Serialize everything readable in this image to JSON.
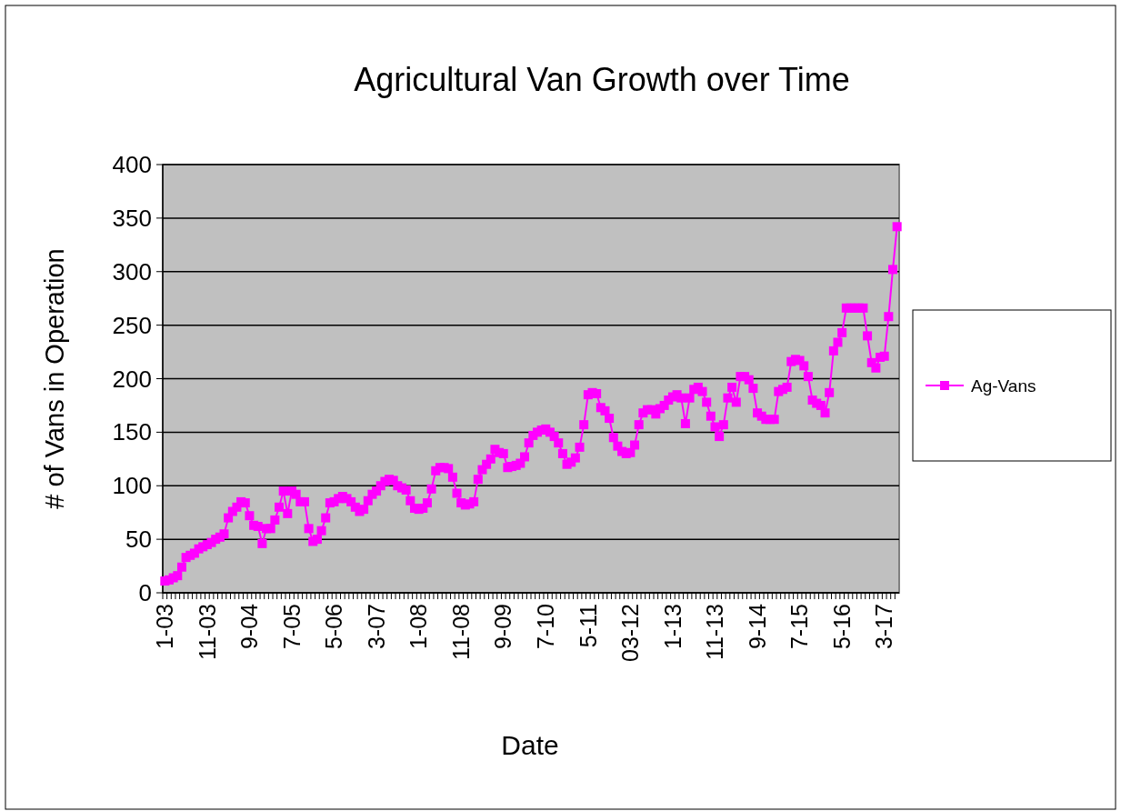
{
  "chart_data": {
    "type": "line",
    "title": "Agricultural Van Growth over Time",
    "xlabel": "Date",
    "ylabel": "# of Vans in Operation",
    "categories": [
      "1-03",
      null,
      null,
      null,
      null,
      null,
      null,
      null,
      null,
      null,
      "11-03",
      null,
      null,
      null,
      null,
      null,
      null,
      null,
      null,
      null,
      "9-04",
      null,
      null,
      null,
      null,
      null,
      null,
      null,
      null,
      null,
      "7-05",
      null,
      null,
      null,
      null,
      null,
      null,
      null,
      null,
      null,
      "5-06",
      null,
      null,
      null,
      null,
      null,
      null,
      null,
      null,
      null,
      "3-07",
      null,
      null,
      null,
      null,
      null,
      null,
      null,
      null,
      null,
      "1-08",
      null,
      null,
      null,
      null,
      null,
      null,
      null,
      null,
      null,
      "11-08",
      null,
      null,
      null,
      null,
      null,
      null,
      null,
      null,
      null,
      "9-09",
      null,
      null,
      null,
      null,
      null,
      null,
      null,
      null,
      null,
      "7-10",
      null,
      null,
      null,
      null,
      null,
      null,
      null,
      null,
      null,
      "5-11",
      null,
      null,
      null,
      null,
      null,
      null,
      null,
      null,
      null,
      "03-12",
      null,
      null,
      null,
      null,
      null,
      null,
      null,
      null,
      null,
      "1-13",
      null,
      null,
      null,
      null,
      null,
      null,
      null,
      null,
      null,
      "11-13",
      null,
      null,
      null,
      null,
      null,
      null,
      null,
      null,
      null,
      "9-14",
      null,
      null,
      null,
      null,
      null,
      null,
      null,
      null,
      null,
      "7-15",
      null,
      null,
      null,
      null,
      null,
      null,
      null,
      null,
      null,
      "5-16",
      null,
      null,
      null,
      null,
      null,
      null,
      null,
      null,
      null,
      "3-17",
      null,
      null,
      null
    ],
    "series": [
      {
        "name": "Ag-Vans",
        "color": "#ff00ff",
        "values": [
          11,
          12,
          14,
          16,
          24,
          33,
          35,
          37,
          41,
          43,
          45,
          47,
          50,
          52,
          55,
          70,
          76,
          80,
          85,
          84,
          72,
          63,
          62,
          46,
          60,
          60,
          68,
          80,
          95,
          74,
          95,
          92,
          85,
          85,
          60,
          48,
          50,
          58,
          70,
          84,
          85,
          88,
          90,
          88,
          85,
          80,
          76,
          78,
          86,
          92,
          95,
          100,
          104,
          106,
          105,
          100,
          98,
          96,
          86,
          79,
          78,
          79,
          84,
          97,
          114,
          117,
          117,
          116,
          108,
          93,
          84,
          82,
          83,
          85,
          106,
          115,
          120,
          125,
          134,
          131,
          130,
          117,
          118,
          119,
          121,
          127,
          140,
          147,
          150,
          152,
          153,
          150,
          146,
          140,
          130,
          120,
          122,
          126,
          136,
          157,
          185,
          187,
          186,
          173,
          170,
          163,
          145,
          137,
          132,
          130,
          131,
          138,
          157,
          168,
          171,
          171,
          167,
          172,
          175,
          180,
          183,
          185,
          182,
          158,
          182,
          190,
          192,
          188,
          178,
          165,
          155,
          146,
          157,
          182,
          192,
          178,
          202,
          202,
          199,
          191,
          168,
          165,
          162,
          162,
          162,
          188,
          190,
          192,
          216,
          218,
          217,
          212,
          202,
          180,
          177,
          175,
          168,
          187,
          226,
          234,
          243,
          266,
          266,
          266,
          266,
          266,
          240,
          215,
          210,
          220,
          221,
          258,
          302,
          342
        ]
      }
    ],
    "ylim": [
      0,
      400
    ],
    "yticks": [
      0,
      50,
      100,
      150,
      200,
      250,
      300,
      350,
      400
    ],
    "grid": "y",
    "legend": "right",
    "marker": "square"
  }
}
